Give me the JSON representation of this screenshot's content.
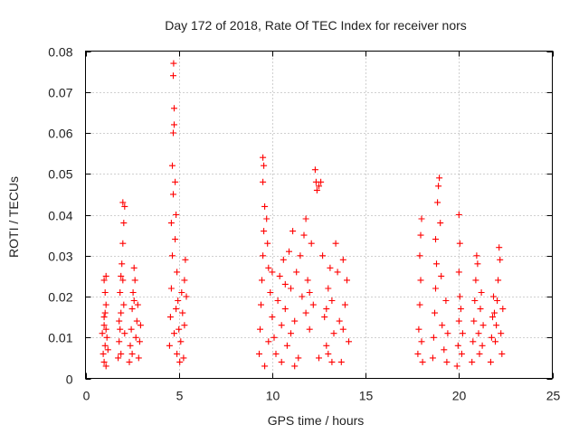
{
  "chart_data": {
    "type": "scatter",
    "title": "Day 172 of 2018, Rate Of TEC Index for receiver nors",
    "xlabel": "GPS time / hours",
    "ylabel": "ROTI / TECUs",
    "xlim": [
      0,
      25
    ],
    "ylim": [
      0,
      0.08
    ],
    "x_ticks": [
      0,
      5,
      10,
      15,
      20,
      25
    ],
    "x_tick_labels": [
      "0",
      "5",
      "10",
      "15",
      "20",
      "25"
    ],
    "y_ticks": [
      0,
      0.01,
      0.02,
      0.03,
      0.04,
      0.05,
      0.06,
      0.07,
      0.08
    ],
    "y_tick_labels": [
      "0",
      "0.01",
      "0.02",
      "0.03",
      "0.04",
      "0.05",
      "0.06",
      "0.07",
      "0.08"
    ],
    "grid": true,
    "marker": "+",
    "color": "#ff0000",
    "series": [
      {
        "name": "ROTI",
        "points": [
          [
            1.0,
            0.004
          ],
          [
            1.05,
            0.008
          ],
          [
            1.1,
            0.012
          ],
          [
            1.0,
            0.015
          ],
          [
            1.1,
            0.018
          ],
          [
            1.05,
            0.021
          ],
          [
            1.0,
            0.024
          ],
          [
            1.1,
            0.025
          ],
          [
            0.95,
            0.006
          ],
          [
            1.15,
            0.01
          ],
          [
            1.0,
            0.013
          ],
          [
            1.1,
            0.003
          ],
          [
            1.05,
            0.016
          ],
          [
            1.2,
            0.007
          ],
          [
            0.9,
            0.011
          ],
          [
            1.75,
            0.005
          ],
          [
            1.8,
            0.009
          ],
          [
            1.85,
            0.012
          ],
          [
            1.9,
            0.016
          ],
          [
            1.85,
            0.021
          ],
          [
            1.9,
            0.025
          ],
          [
            1.95,
            0.028
          ],
          [
            2.0,
            0.033
          ],
          [
            2.05,
            0.038
          ],
          [
            2.1,
            0.042
          ],
          [
            2.0,
            0.043
          ],
          [
            1.8,
            0.014
          ],
          [
            2.05,
            0.018
          ],
          [
            1.9,
            0.006
          ],
          [
            2.1,
            0.011
          ],
          [
            2.0,
            0.024
          ],
          [
            2.35,
            0.004
          ],
          [
            2.4,
            0.008
          ],
          [
            2.45,
            0.012
          ],
          [
            2.5,
            0.017
          ],
          [
            2.55,
            0.021
          ],
          [
            2.6,
            0.027
          ],
          [
            2.65,
            0.024
          ],
          [
            2.5,
            0.006
          ],
          [
            2.7,
            0.01
          ],
          [
            2.75,
            0.014
          ],
          [
            2.8,
            0.018
          ],
          [
            2.9,
            0.009
          ],
          [
            2.85,
            0.005
          ],
          [
            2.95,
            0.013
          ],
          [
            2.6,
            0.019
          ],
          [
            4.5,
            0.008
          ],
          [
            4.55,
            0.015
          ],
          [
            4.6,
            0.022
          ],
          [
            4.65,
            0.03
          ],
          [
            4.6,
            0.038
          ],
          [
            4.7,
            0.045
          ],
          [
            4.65,
            0.052
          ],
          [
            4.7,
            0.06
          ],
          [
            4.75,
            0.066
          ],
          [
            4.7,
            0.074
          ],
          [
            4.72,
            0.077
          ],
          [
            4.75,
            0.062
          ],
          [
            4.8,
            0.048
          ],
          [
            4.85,
            0.04
          ],
          [
            4.8,
            0.034
          ],
          [
            4.9,
            0.026
          ],
          [
            4.95,
            0.019
          ],
          [
            5.0,
            0.012
          ],
          [
            4.9,
            0.006
          ],
          [
            5.1,
            0.009
          ],
          [
            5.2,
            0.016
          ],
          [
            5.3,
            0.024
          ],
          [
            5.35,
            0.029
          ],
          [
            5.25,
            0.005
          ],
          [
            5.15,
            0.021
          ],
          [
            5.05,
            0.004
          ],
          [
            4.85,
            0.017
          ],
          [
            4.75,
            0.011
          ],
          [
            5.3,
            0.013
          ],
          [
            5.4,
            0.02
          ],
          [
            9.3,
            0.006
          ],
          [
            9.35,
            0.012
          ],
          [
            9.4,
            0.018
          ],
          [
            9.45,
            0.024
          ],
          [
            9.5,
            0.03
          ],
          [
            9.55,
            0.036
          ],
          [
            9.6,
            0.042
          ],
          [
            9.5,
            0.048
          ],
          [
            9.55,
            0.052
          ],
          [
            9.5,
            0.054
          ],
          [
            9.7,
            0.039
          ],
          [
            9.75,
            0.033
          ],
          [
            9.8,
            0.027
          ],
          [
            9.9,
            0.021
          ],
          [
            10.0,
            0.015
          ],
          [
            10.1,
            0.01
          ],
          [
            10.2,
            0.006
          ],
          [
            10.3,
            0.019
          ],
          [
            10.4,
            0.025
          ],
          [
            10.5,
            0.013
          ],
          [
            10.6,
            0.029
          ],
          [
            10.7,
            0.017
          ],
          [
            10.8,
            0.008
          ],
          [
            10.9,
            0.031
          ],
          [
            11.0,
            0.022
          ],
          [
            11.1,
            0.036
          ],
          [
            11.2,
            0.014
          ],
          [
            11.3,
            0.026
          ],
          [
            11.4,
            0.005
          ],
          [
            11.5,
            0.03
          ],
          [
            11.6,
            0.02
          ],
          [
            11.7,
            0.035
          ],
          [
            11.8,
            0.039
          ],
          [
            11.9,
            0.024
          ],
          [
            12.0,
            0.012
          ],
          [
            12.1,
            0.033
          ],
          [
            12.2,
            0.018
          ],
          [
            12.3,
            0.051
          ],
          [
            12.35,
            0.048
          ],
          [
            12.4,
            0.046
          ],
          [
            12.5,
            0.047
          ],
          [
            12.6,
            0.048
          ],
          [
            12.7,
            0.03
          ],
          [
            12.8,
            0.015
          ],
          [
            12.9,
            0.008
          ],
          [
            13.0,
            0.022
          ],
          [
            13.1,
            0.027
          ],
          [
            13.2,
            0.019
          ],
          [
            13.3,
            0.011
          ],
          [
            13.4,
            0.033
          ],
          [
            13.5,
            0.026
          ],
          [
            13.6,
            0.014
          ],
          [
            13.7,
            0.004
          ],
          [
            13.8,
            0.029
          ],
          [
            13.9,
            0.018
          ],
          [
            14.0,
            0.024
          ],
          [
            14.1,
            0.009
          ],
          [
            9.6,
            0.003
          ],
          [
            10.5,
            0.004
          ],
          [
            11.2,
            0.003
          ],
          [
            12.5,
            0.005
          ],
          [
            13.2,
            0.004
          ],
          [
            10.0,
            0.026
          ],
          [
            11.0,
            0.011
          ],
          [
            12.0,
            0.021
          ],
          [
            13.0,
            0.006
          ],
          [
            9.8,
            0.009
          ],
          [
            10.7,
            0.023
          ],
          [
            11.8,
            0.016
          ],
          [
            12.9,
            0.017
          ],
          [
            13.8,
            0.012
          ],
          [
            17.8,
            0.006
          ],
          [
            17.85,
            0.012
          ],
          [
            17.9,
            0.018
          ],
          [
            17.95,
            0.024
          ],
          [
            17.9,
            0.03
          ],
          [
            17.95,
            0.035
          ],
          [
            18.0,
            0.039
          ],
          [
            18.05,
            0.004
          ],
          [
            18.0,
            0.009
          ],
          [
            18.6,
            0.005
          ],
          [
            18.65,
            0.01
          ],
          [
            18.7,
            0.016
          ],
          [
            18.75,
            0.022
          ],
          [
            18.8,
            0.028
          ],
          [
            18.75,
            0.034
          ],
          [
            18.85,
            0.043
          ],
          [
            18.9,
            0.047
          ],
          [
            18.95,
            0.049
          ],
          [
            19.0,
            0.038
          ],
          [
            19.05,
            0.025
          ],
          [
            19.1,
            0.013
          ],
          [
            19.2,
            0.007
          ],
          [
            19.3,
            0.019
          ],
          [
            19.4,
            0.011
          ],
          [
            19.35,
            0.004
          ],
          [
            19.9,
            0.003
          ],
          [
            19.95,
            0.008
          ],
          [
            20.0,
            0.014
          ],
          [
            20.05,
            0.02
          ],
          [
            20.0,
            0.026
          ],
          [
            20.05,
            0.033
          ],
          [
            20.0,
            0.04
          ],
          [
            20.1,
            0.017
          ],
          [
            20.15,
            0.006
          ],
          [
            20.2,
            0.011
          ],
          [
            20.7,
            0.004
          ],
          [
            20.75,
            0.009
          ],
          [
            20.8,
            0.014
          ],
          [
            20.85,
            0.019
          ],
          [
            20.9,
            0.024
          ],
          [
            20.95,
            0.03
          ],
          [
            21.0,
            0.028
          ],
          [
            21.05,
            0.011
          ],
          [
            21.1,
            0.006
          ],
          [
            21.15,
            0.017
          ],
          [
            21.2,
            0.021
          ],
          [
            21.25,
            0.008
          ],
          [
            21.3,
            0.013
          ],
          [
            21.7,
            0.004
          ],
          [
            21.75,
            0.01
          ],
          [
            21.8,
            0.015
          ],
          [
            21.85,
            0.02
          ],
          [
            21.9,
            0.016
          ],
          [
            21.95,
            0.009
          ],
          [
            22.0,
            0.013
          ],
          [
            22.05,
            0.019
          ],
          [
            22.1,
            0.024
          ],
          [
            22.15,
            0.032
          ],
          [
            22.2,
            0.029
          ],
          [
            22.25,
            0.011
          ],
          [
            22.3,
            0.006
          ],
          [
            22.35,
            0.017
          ]
        ]
      }
    ]
  }
}
